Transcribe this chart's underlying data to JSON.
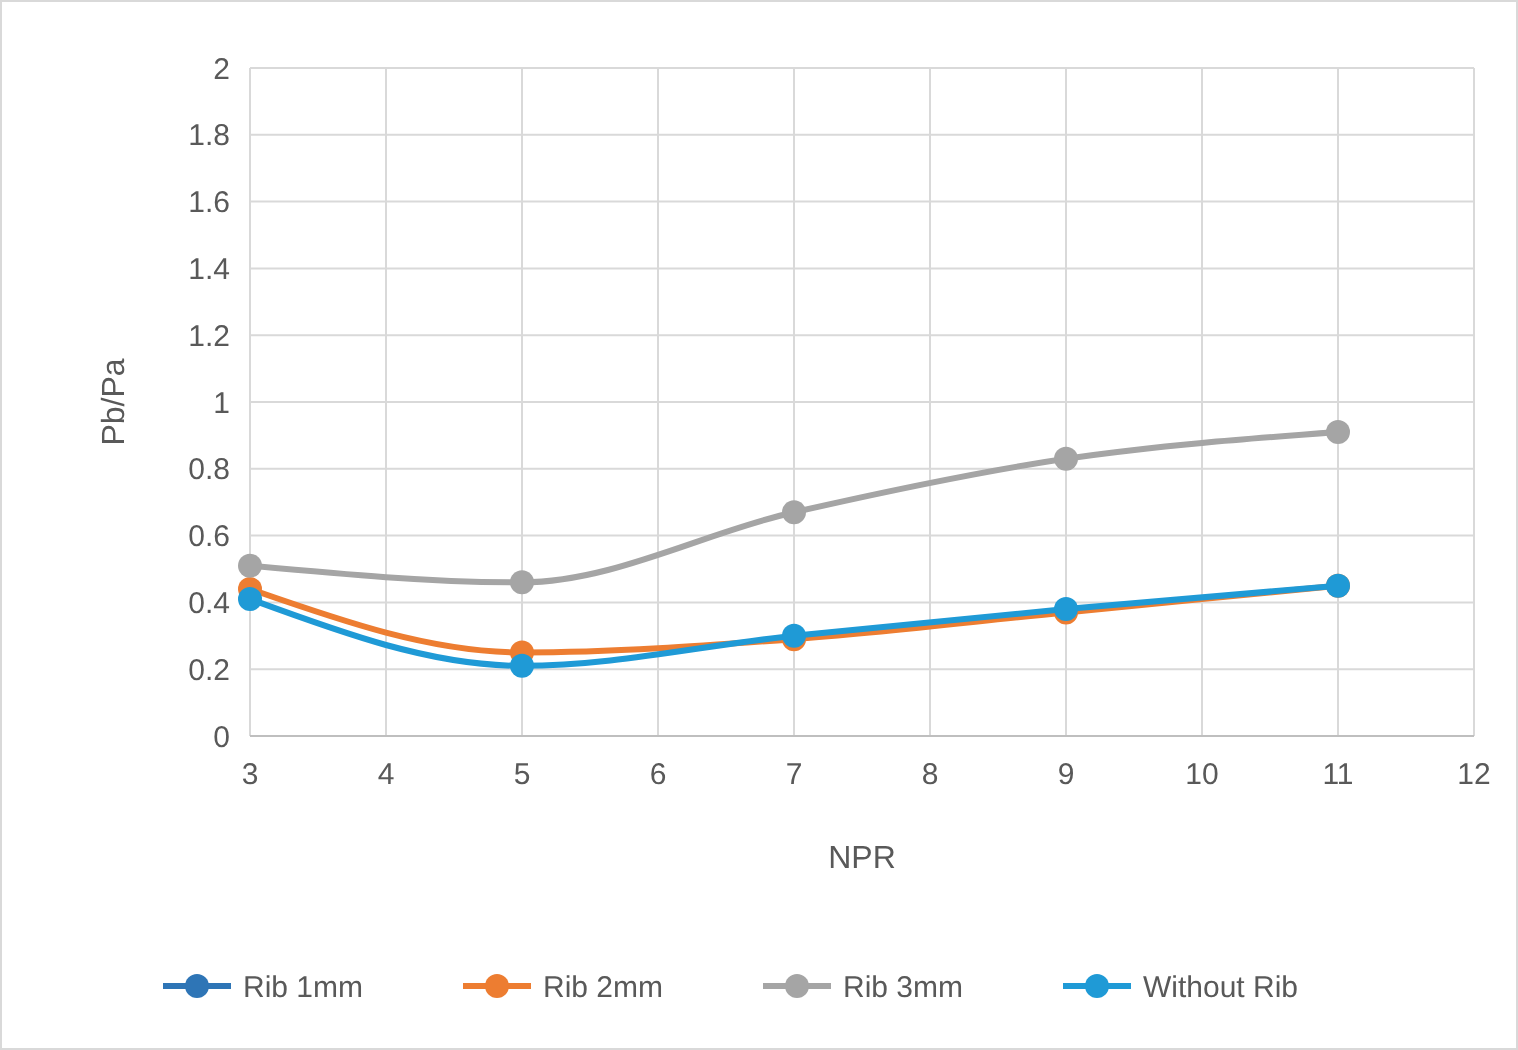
{
  "chart_data": {
    "type": "line",
    "xlabel": "NPR",
    "ylabel": "Pb/Pa",
    "x": [
      3,
      5,
      7,
      9,
      11
    ],
    "xlim": [
      3,
      12
    ],
    "xticks": [
      3,
      4,
      5,
      6,
      7,
      8,
      9,
      10,
      11,
      12
    ],
    "ylim": [
      0,
      2
    ],
    "yticks": [
      0,
      0.2,
      0.4,
      0.6,
      0.8,
      1,
      1.2,
      1.4,
      1.6,
      1.8,
      2
    ],
    "grid": true,
    "legend": "bottom",
    "marker": "circle",
    "line_style": "solid",
    "series": [
      {
        "name": "Rib 1mm",
        "color": "#2e75b6",
        "values": [
          null,
          null,
          null,
          null,
          null
        ]
      },
      {
        "name": "Rib 2mm",
        "color": "#ed7d31",
        "values": [
          0.44,
          0.25,
          0.29,
          0.37,
          0.45
        ]
      },
      {
        "name": "Rib 3mm",
        "color": "#a5a5a5",
        "values": [
          0.51,
          0.46,
          0.67,
          0.83,
          0.91
        ]
      },
      {
        "name": "Without Rib",
        "color": "#1f9ad6",
        "values": [
          0.41,
          0.21,
          0.3,
          0.38,
          0.45
        ]
      }
    ]
  }
}
